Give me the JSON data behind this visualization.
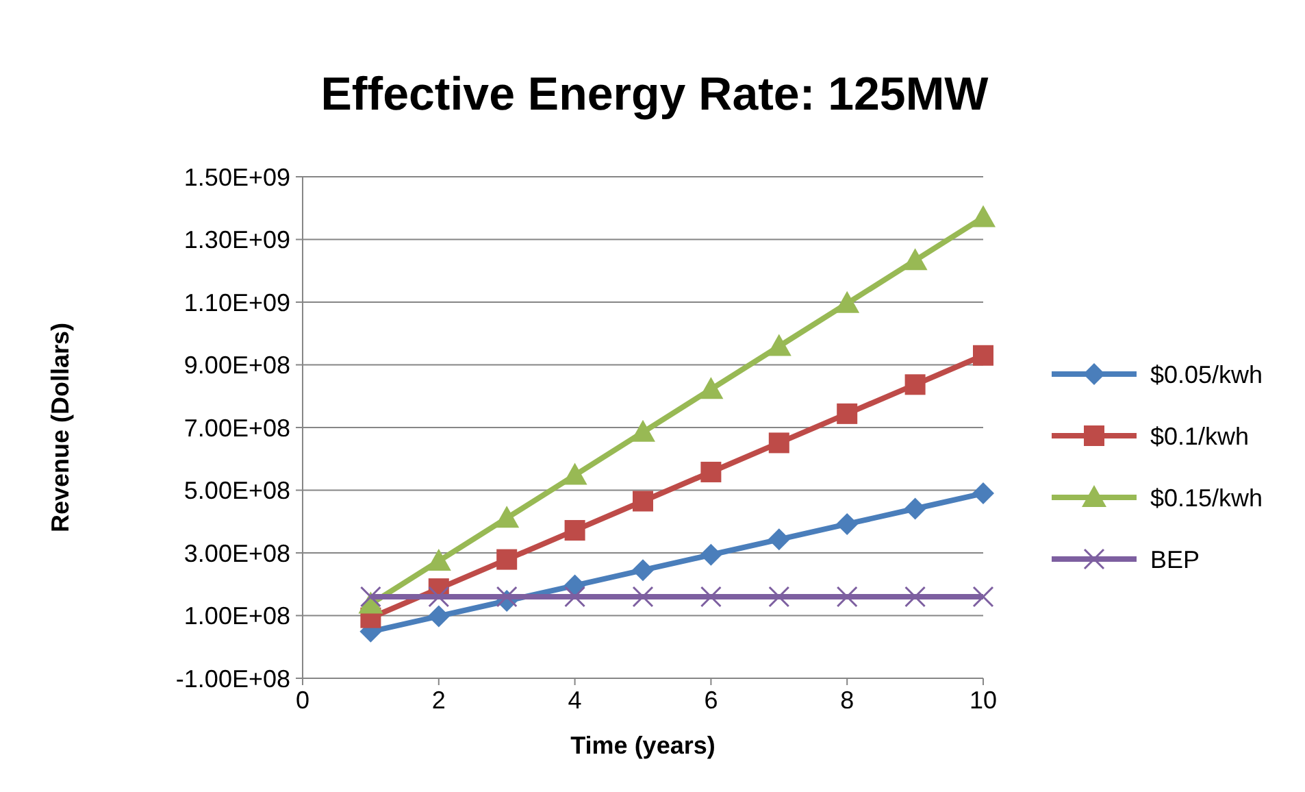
{
  "chart_data": {
    "type": "line",
    "title": "Effective Energy Rate:  125MW",
    "xlabel": "Time (years)",
    "ylabel": "Revenue (Dollars)",
    "x": [
      1,
      2,
      3,
      4,
      5,
      6,
      7,
      8,
      9,
      10
    ],
    "series": [
      {
        "name": "$0.05/kwh",
        "color": "#4a7ebb",
        "marker": "diamond",
        "values": [
          49000000,
          98000000,
          147000000,
          196000000,
          245000000,
          294000000,
          343000000,
          392000000,
          441000000,
          490000000
        ]
      },
      {
        "name": "$0.1/kwh",
        "color": "#be4b48",
        "marker": "square",
        "values": [
          93000000,
          186000000,
          279000000,
          372000000,
          465000000,
          558000000,
          651000000,
          744000000,
          837000000,
          930000000
        ]
      },
      {
        "name": "$0.15/kwh",
        "color": "#98b954",
        "marker": "triangle",
        "values": [
          137000000,
          274000000,
          411000000,
          548000000,
          685000000,
          822000000,
          959000000,
          1096000000,
          1233000000,
          1370000000
        ]
      },
      {
        "name": "BEP",
        "color": "#7d5fa0",
        "marker": "cross",
        "values": [
          160000000,
          160000000,
          160000000,
          160000000,
          160000000,
          160000000,
          160000000,
          160000000,
          160000000,
          160000000
        ]
      }
    ],
    "xlim": [
      0,
      10
    ],
    "xticks": [
      0,
      2,
      4,
      6,
      8,
      10
    ],
    "ylim": [
      -100000000,
      1500000000
    ],
    "yticks": [
      {
        "value": -100000000,
        "label": "-1.00E+08"
      },
      {
        "value": 100000000,
        "label": "1.00E+08"
      },
      {
        "value": 300000000,
        "label": "3.00E+08"
      },
      {
        "value": 500000000,
        "label": "5.00E+08"
      },
      {
        "value": 700000000,
        "label": "7.00E+08"
      },
      {
        "value": 900000000,
        "label": "9.00E+08"
      },
      {
        "value": 1100000000,
        "label": "1.10E+09"
      },
      {
        "value": 1300000000,
        "label": "1.30E+09"
      },
      {
        "value": 1500000000,
        "label": "1.50E+09"
      }
    ],
    "grid": "y",
    "legend": "right",
    "line_style": "solid"
  }
}
